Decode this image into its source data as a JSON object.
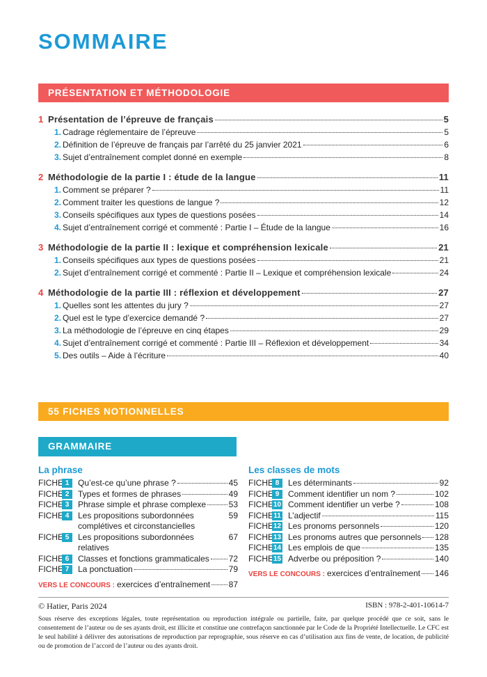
{
  "title": "SOMMAIRE",
  "section1": {
    "title": "PRÉSENTATION ET MÉTHODOLOGIE",
    "chapters": [
      {
        "num": "1",
        "title": "Présentation de l’épreuve de français",
        "page": 5,
        "items": [
          {
            "num": "1.",
            "text": "Cadrage réglementaire de l’épreuve",
            "page": 5
          },
          {
            "num": "2.",
            "text": "Définition de l’épreuve de français par l’arrêté du 25 janvier 2021",
            "page": 6
          },
          {
            "num": "3.",
            "text": "Sujet d’entraînement complet donné en exemple",
            "page": 8
          }
        ]
      },
      {
        "num": "2",
        "title": "Méthodologie de la partie I : étude de la langue",
        "page": 11,
        "items": [
          {
            "num": "1.",
            "text": "Comment se préparer ?",
            "page": 11
          },
          {
            "num": "2.",
            "text": "Comment traiter les questions de langue ?",
            "page": 12
          },
          {
            "num": "3.",
            "text": "Conseils spécifiques aux types de questions posées",
            "page": 14
          },
          {
            "num": "4.",
            "text": "Sujet d’entraînement corrigé et commenté : Partie I – Étude de la langue",
            "page": 16
          }
        ]
      },
      {
        "num": "3",
        "title": "Méthodologie de la partie II : lexique et compréhension lexicale",
        "page": 21,
        "items": [
          {
            "num": "1.",
            "text": "Conseils spécifiques aux types de questions posées",
            "page": 21
          },
          {
            "num": "2.",
            "text": "Sujet d’entraînement corrigé et commenté : Partie II – Lexique et compréhension lexicale",
            "page": 24
          }
        ]
      },
      {
        "num": "4",
        "title": "Méthodologie de la partie III : réflexion et développement",
        "page": 27,
        "items": [
          {
            "num": "1.",
            "text": "Quelles sont les attentes du jury ?",
            "page": 27
          },
          {
            "num": "2.",
            "text": "Quel est le type d’exercice demandé ?",
            "page": 27
          },
          {
            "num": "3.",
            "text": "La méthodologie de l’épreuve en cinq étapes",
            "page": 29
          },
          {
            "num": "4.",
            "text": "Sujet d’entraînement corrigé et commenté : Partie III – Réflexion et développement",
            "page": 34
          },
          {
            "num": "5.",
            "text": "Des outils – Aide à l’écriture",
            "page": 40
          }
        ]
      }
    ]
  },
  "section2": {
    "title": "55 FICHES NOTIONNELLES",
    "subsection": {
      "title": "GRAMMAIRE",
      "fiche_label": "FICHE",
      "concours_label": "VERS LE CONCOURS :",
      "columns": [
        {
          "heading": "La phrase",
          "fiches": [
            {
              "num": "1",
              "text": "Qu’est-ce qu’une phrase ?",
              "page": 45
            },
            {
              "num": "2",
              "text": "Types et formes de phrases",
              "page": 49
            },
            {
              "num": "3",
              "text": "Phrase simple et phrase complexe",
              "page": 53
            },
            {
              "num": "4",
              "text": "Les propositions subordonnées complétives et circonstancielles",
              "page": 59
            },
            {
              "num": "5",
              "text": "Les propositions subordonnées relatives",
              "page": 67
            },
            {
              "num": "6",
              "text": "Classes et fonctions grammaticales",
              "page": 72
            },
            {
              "num": "7",
              "text": "La ponctuation",
              "page": 79
            }
          ],
          "concours": {
            "text": "exercices d’entraînement",
            "page": 87
          }
        },
        {
          "heading": "Les classes de mots",
          "fiches": [
            {
              "num": "8",
              "text": "Les déterminants",
              "page": 92
            },
            {
              "num": "9",
              "text": "Comment identifier un nom ?",
              "page": 102
            },
            {
              "num": "10",
              "text": "Comment identifier un verbe ?",
              "page": 108
            },
            {
              "num": "11",
              "text": "L’adjectif",
              "page": 115
            },
            {
              "num": "12",
              "text": "Les pronoms personnels",
              "page": 120
            },
            {
              "num": "13",
              "text": "Les pronoms autres que personnels",
              "page": 128
            },
            {
              "num": "14",
              "text": "Les emplois de que",
              "page": 135
            },
            {
              "num": "15",
              "text": "Adverbe ou préposition ?",
              "page": 140
            }
          ],
          "concours": {
            "text": "exercices d’entraînement",
            "page": 146
          }
        }
      ]
    }
  },
  "footer": {
    "copyright": "© Hatier, Paris 2024",
    "isbn": "ISBN : 978-2-401-10614-7",
    "notice": "Sous réserve des exceptions légales, toute représentation ou reproduction intégrale ou partielle, faite, par quelque procédé que ce soit, sans le consentement de l’auteur ou de ses ayants droit, est illicite et constitue une contrefaçon sanctionnée par le Code de la Propriété Intellectuelle. Le CFC est le seul habilité à délivrer des autorisations de reproduction par reprographie, sous réserve en cas d’utilisation aux fins de vente, de location, de publicité ou de promotion de l’accord de l’auteur ou des ayants droit."
  }
}
